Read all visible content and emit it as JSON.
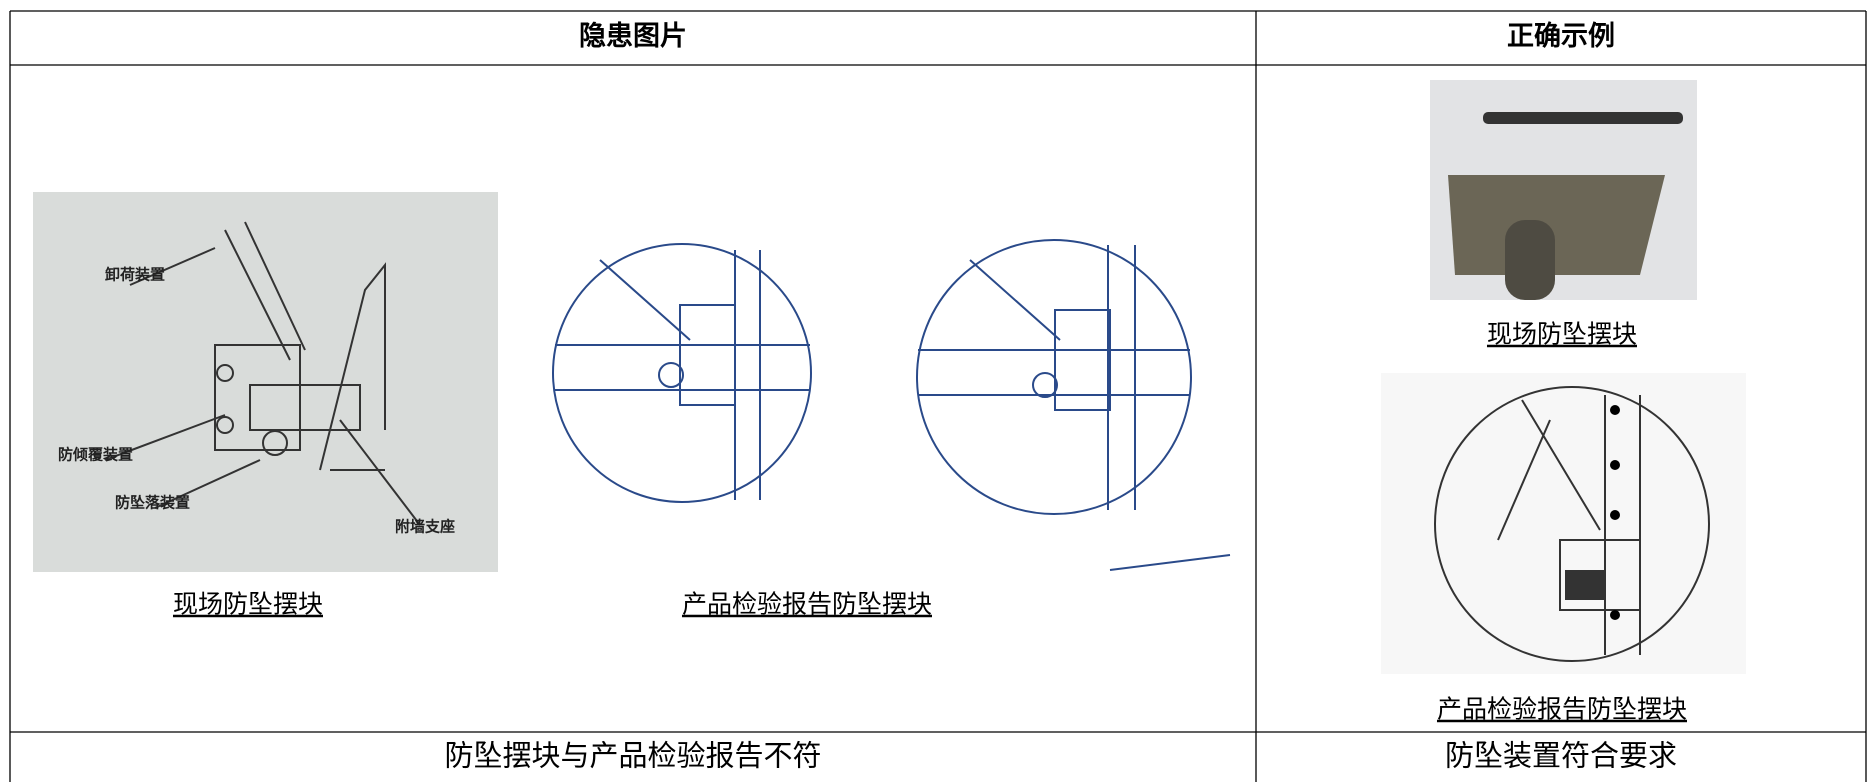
{
  "table": {
    "header": [
      "隐患图片",
      "正确示例"
    ],
    "hazard": {
      "photo_labels": [
        "卸荷装置",
        "防倾覆装置",
        "防坠落装置",
        "附墙支座"
      ],
      "captions": [
        "现场防坠摆块",
        "产品检验报告防坠摆块"
      ]
    },
    "correct": {
      "captions": [
        "现场防坠摆块",
        "产品检验报告防坠摆块"
      ]
    },
    "footer": [
      "防坠摆块与产品检验报告不符",
      "防坠装置符合要求"
    ]
  }
}
